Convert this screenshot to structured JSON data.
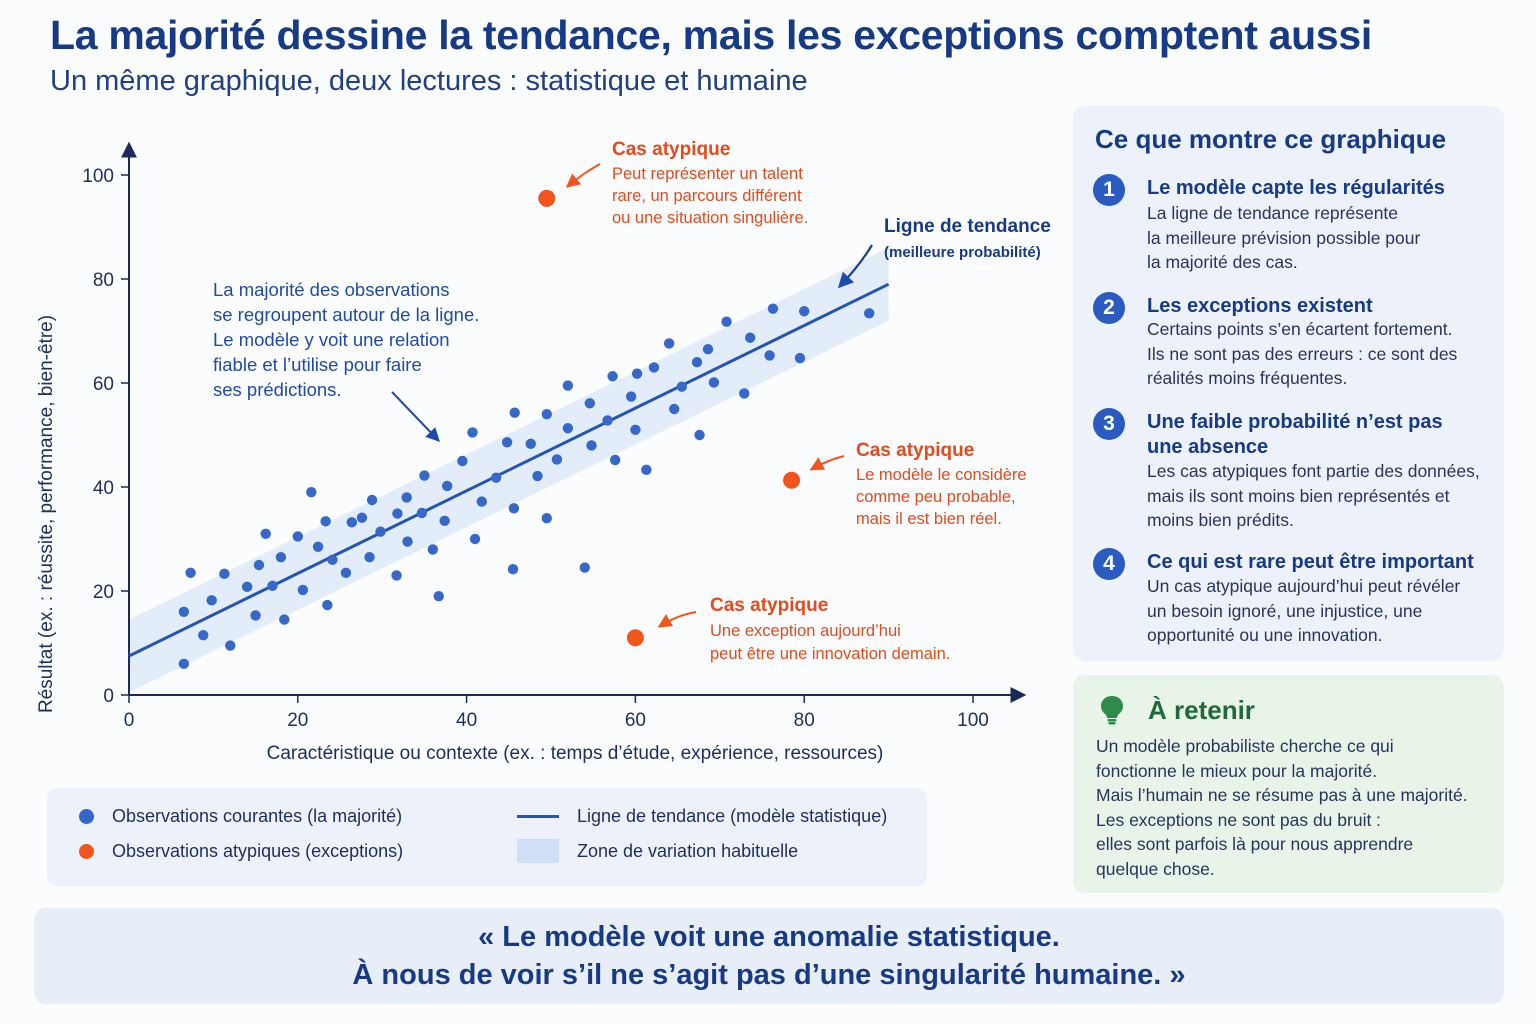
{
  "header": {
    "title": "La majorité dessine la tendance, mais les exceptions comptent aussi",
    "subtitle": "Un même graphique, deux lectures : statistique et humaine"
  },
  "colors": {
    "primary": "#2a5bc0",
    "dot_blue": "#3568c9",
    "outlier": "#f2551c",
    "zone": "#cfe0f6",
    "green_title": "#1f6a3a"
  },
  "chart_data": {
    "type": "scatter",
    "xlabel": "Caractéristique ou contexte (ex. : temps d’étude, expérience, ressources)",
    "ylabel": "Résultat (ex. : réussite, performance, bien-être)",
    "xlim": [
      0,
      100
    ],
    "ylim": [
      0,
      100
    ],
    "xticks": [
      0,
      20,
      40,
      60,
      80,
      100
    ],
    "yticks": [
      0,
      20,
      40,
      60,
      80,
      100
    ],
    "trend_line": {
      "x": [
        0,
        90
      ],
      "y": [
        7.5,
        79
      ]
    },
    "trend_band_halfwidth": 7,
    "series": [
      {
        "name": "Observations courantes (la majorité)",
        "points": [
          [
            6.5,
            6
          ],
          [
            6.5,
            16
          ],
          [
            7.3,
            23.5
          ],
          [
            8.8,
            11.5
          ],
          [
            9.8,
            18.2
          ],
          [
            11.3,
            23.3
          ],
          [
            12,
            9.5
          ],
          [
            14,
            20.8
          ],
          [
            15,
            15.3
          ],
          [
            15.4,
            25
          ],
          [
            16.2,
            31
          ],
          [
            18,
            26.5
          ],
          [
            17,
            21
          ],
          [
            18.4,
            14.5
          ],
          [
            20,
            30.5
          ],
          [
            20.6,
            20.2
          ],
          [
            21.6,
            39
          ],
          [
            22.4,
            28.5
          ],
          [
            23.3,
            33.4
          ],
          [
            23.5,
            17.3
          ],
          [
            24.1,
            26
          ],
          [
            25.7,
            23.5
          ],
          [
            26.4,
            33.2
          ],
          [
            27.6,
            34.1
          ],
          [
            28.5,
            26.5
          ],
          [
            28.8,
            37.5
          ],
          [
            29.8,
            31.4
          ],
          [
            31.7,
            23
          ],
          [
            31.8,
            34.9
          ],
          [
            32.9,
            38
          ],
          [
            33,
            29.5
          ],
          [
            34.7,
            35
          ],
          [
            35,
            42.2
          ],
          [
            36,
            28
          ],
          [
            36.7,
            19
          ],
          [
            37.4,
            33.5
          ],
          [
            37.7,
            40.2
          ],
          [
            39.5,
            45
          ],
          [
            40.7,
            50.5
          ],
          [
            41,
            30
          ],
          [
            41.8,
            37.2
          ],
          [
            43.5,
            41.8
          ],
          [
            44.8,
            48.6
          ],
          [
            45.5,
            24.2
          ],
          [
            45.6,
            35.9
          ],
          [
            45.7,
            54.3
          ],
          [
            47.6,
            48.3
          ],
          [
            48.4,
            42.1
          ],
          [
            49.5,
            54
          ],
          [
            49.5,
            34
          ],
          [
            50.7,
            45.3
          ],
          [
            52,
            51.3
          ],
          [
            52,
            59.5
          ],
          [
            54,
            24.5
          ],
          [
            54.6,
            56.1
          ],
          [
            54.8,
            48
          ],
          [
            56.7,
            52.8
          ],
          [
            57.3,
            61.3
          ],
          [
            57.6,
            45.2
          ],
          [
            59.5,
            57.4
          ],
          [
            60,
            51
          ],
          [
            60.2,
            61.8
          ],
          [
            61.3,
            43.3
          ],
          [
            62.2,
            63
          ],
          [
            64,
            67.6
          ],
          [
            64.6,
            55
          ],
          [
            65.5,
            59.3
          ],
          [
            67.3,
            64
          ],
          [
            67.6,
            50
          ],
          [
            68.6,
            66.5
          ],
          [
            69.3,
            60.1
          ],
          [
            70.8,
            71.8
          ],
          [
            72.9,
            58
          ],
          [
            73.6,
            68.7
          ],
          [
            75.9,
            65.3
          ],
          [
            76.3,
            74.3
          ],
          [
            79.5,
            64.8
          ],
          [
            80,
            73.8
          ],
          [
            87.7,
            73.4
          ]
        ]
      },
      {
        "name": "Observations atypiques (exceptions)",
        "points": [
          [
            49.5,
            95.5
          ],
          [
            78.5,
            41.3
          ],
          [
            60,
            11
          ]
        ]
      }
    ]
  },
  "annotations": {
    "majority": [
      "La majorité des observations",
      "se regroupent autour de la ligne.",
      "Le modèle y voit une relation",
      "fiable et l’utilise pour faire",
      "ses prédictions."
    ],
    "trend_title": "Ligne de tendance",
    "trend_sub": "(meilleure probabilité)",
    "outlier_top": {
      "title": "Cas atypique",
      "lines": [
        "Peut représenter un talent",
        "rare, un parcours différent",
        "ou une situation singulière."
      ]
    },
    "outlier_mid": {
      "title": "Cas atypique",
      "lines": [
        "Le modèle le considère",
        "comme peu probable,",
        "mais il est bien réel."
      ]
    },
    "outlier_low": {
      "title": "Cas atypique",
      "lines": [
        "Une exception aujourd’hui",
        "peut être une innovation demain."
      ]
    }
  },
  "legend": {
    "common": "Observations courantes (la majorité)",
    "atypical": "Observations atypiques (exceptions)",
    "trend": "Ligne de tendance (modèle statistique)",
    "zone": "Zone de variation habituelle"
  },
  "side": {
    "title": "Ce que montre ce graphique",
    "points": [
      {
        "num": "1",
        "title": "Le modèle capte les régularités",
        "text": [
          "La ligne de tendance représente",
          "la meilleure prévision possible pour",
          "la majorité des cas."
        ]
      },
      {
        "num": "2",
        "title": "Les exceptions existent",
        "text": [
          "Certains points s’en écartent fortement.",
          "Ils ne sont pas des erreurs : ce sont des",
          "réalités moins fréquentes."
        ]
      },
      {
        "num": "3",
        "title": "Une faible probabilité n’est pas une absence",
        "text": [
          "Les cas atypiques font partie des données,",
          "mais ils sont moins bien représentés et",
          "moins bien prédits."
        ]
      },
      {
        "num": "4",
        "title": "Ce qui est rare peut être important",
        "text": [
          "Un cas atypique aujourd’hui peut révéler",
          "un besoin ignoré, une injustice, une",
          "opportunité ou une innovation."
        ]
      }
    ]
  },
  "retain": {
    "title": "À retenir",
    "text": [
      "Un modèle probabiliste cherche ce qui",
      "fonctionne le mieux pour la majorité.",
      "Mais l’humain ne se résume pas à une majorité.",
      "Les exceptions ne sont pas du bruit :",
      "elles sont parfois là pour nous apprendre",
      "quelque chose."
    ]
  },
  "quote": {
    "line1": "« Le modèle voit une anomalie statistique.",
    "line2": "À nous de voir s’il ne s’agit pas d’une singularité humaine. »"
  }
}
